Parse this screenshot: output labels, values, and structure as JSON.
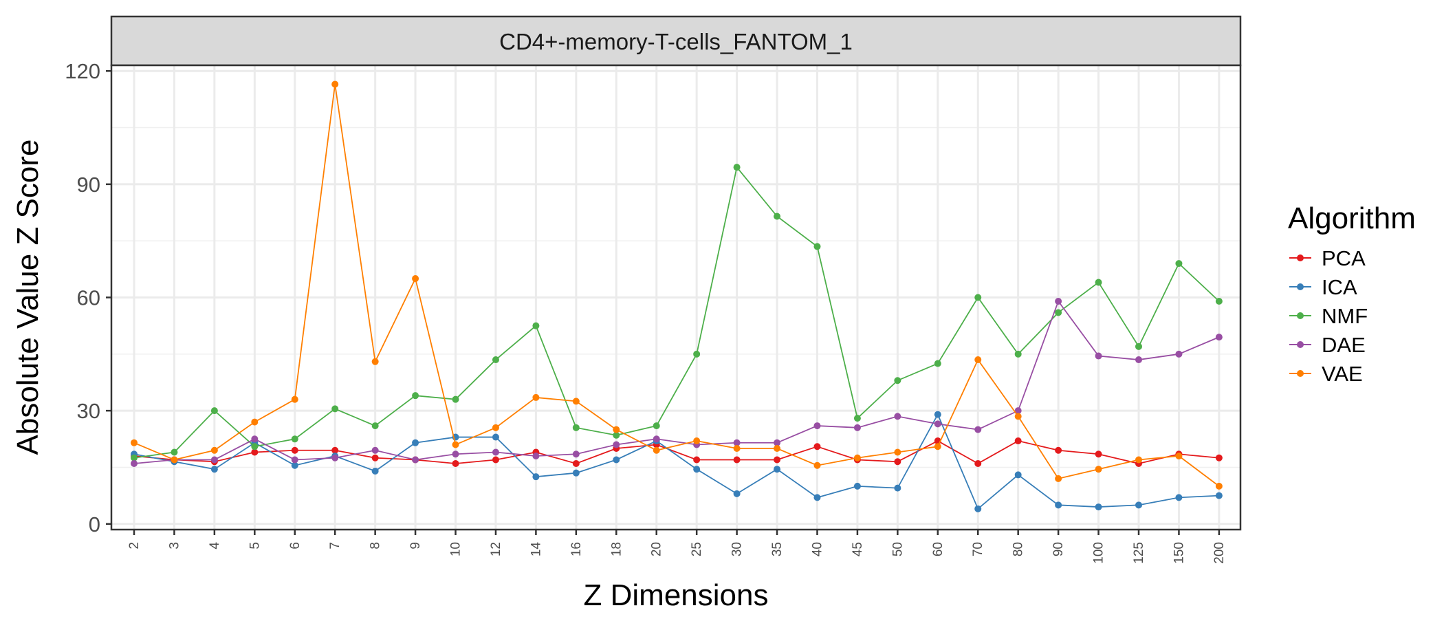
{
  "chart_data": {
    "type": "line",
    "facet_label": "CD4+-memory-T-cells_FANTOM_1",
    "xlabel": "Z Dimensions",
    "ylabel": "Absolute Value Z Score",
    "categories": [
      "2",
      "3",
      "4",
      "5",
      "6",
      "7",
      "8",
      "9",
      "10",
      "12",
      "14",
      "16",
      "18",
      "20",
      "25",
      "30",
      "35",
      "40",
      "45",
      "50",
      "60",
      "70",
      "80",
      "90",
      "100",
      "125",
      "150",
      "200"
    ],
    "y_ticks": [
      0,
      30,
      60,
      90,
      120
    ],
    "ylim": [
      -1.5,
      121.5
    ],
    "grid": true,
    "legend": {
      "title": "Algorithm",
      "position": "right"
    },
    "series": [
      {
        "name": "PCA",
        "color": "#e41a1c",
        "values": [
          18,
          17,
          16.5,
          19,
          19.5,
          19.5,
          17.5,
          17,
          16,
          17,
          19,
          16,
          20,
          21,
          17,
          17,
          17,
          20.5,
          17,
          16.5,
          22,
          16,
          22,
          19.5,
          18.5,
          16,
          18.5,
          17.5
        ]
      },
      {
        "name": "ICA",
        "color": "#377eb8",
        "values": [
          18.5,
          16.5,
          14.5,
          21.5,
          15.5,
          18,
          14,
          21.5,
          23,
          23,
          12.5,
          13.5,
          17,
          22,
          14.5,
          8,
          14.5,
          7,
          10,
          9.5,
          29,
          4,
          13,
          5,
          4.5,
          5,
          7,
          7.5
        ]
      },
      {
        "name": "NMF",
        "color": "#4daf4a",
        "values": [
          17.5,
          19,
          30,
          20.5,
          22.5,
          30.5,
          26,
          34,
          33,
          43.5,
          52.5,
          25.5,
          23.5,
          26,
          45,
          94.5,
          81.5,
          73.5,
          28,
          38,
          42.5,
          60,
          45,
          56,
          64,
          47,
          69,
          59
        ]
      },
      {
        "name": "DAE",
        "color": "#984ea3",
        "values": [
          16,
          17,
          17,
          22.5,
          17,
          17.5,
          19.5,
          17,
          18.5,
          19,
          18,
          18.5,
          21,
          22.5,
          21,
          21.5,
          21.5,
          26,
          25.5,
          28.5,
          26.5,
          25,
          30,
          59,
          44.5,
          43.5,
          45,
          49.5
        ]
      },
      {
        "name": "VAE",
        "color": "#ff7f00",
        "values": [
          21.5,
          17,
          19.5,
          27,
          33,
          116.5,
          43,
          65,
          21,
          25.5,
          33.5,
          32.5,
          25,
          19.5,
          22,
          20,
          20,
          15.5,
          17.5,
          19,
          20.5,
          43.5,
          28.5,
          12,
          14.5,
          17,
          18,
          10
        ]
      }
    ]
  }
}
